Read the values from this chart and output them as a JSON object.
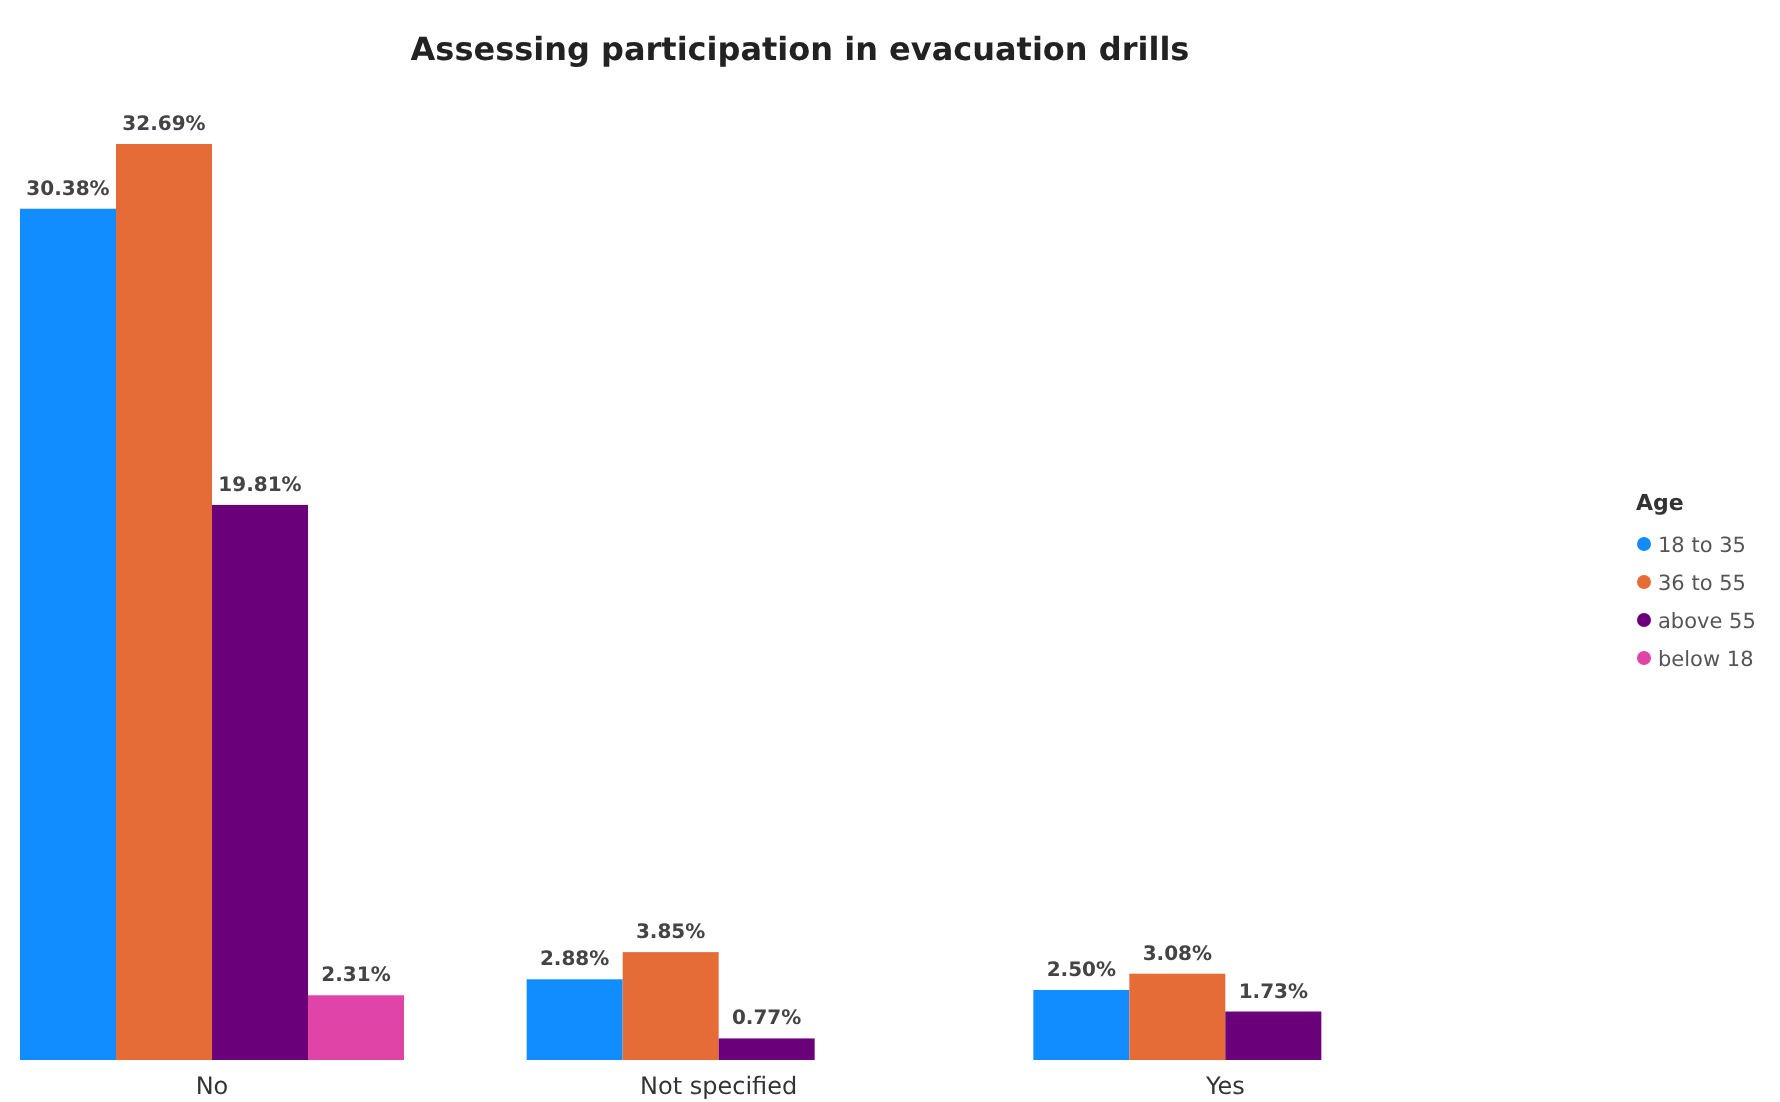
{
  "chart_data": {
    "type": "bar",
    "title": "Assessing participation in evacuation drills",
    "legend_title": "Age",
    "legend": "right",
    "categories": [
      "No",
      "Not specified",
      "Yes"
    ],
    "series": [
      {
        "name": "18 to 35",
        "color": "#118dff",
        "values": [
          30.38,
          2.88,
          2.5
        ],
        "value_labels": [
          "30.38%",
          "2.88%",
          "2.50%"
        ]
      },
      {
        "name": "36 to 55",
        "color": "#e66c37",
        "values": [
          32.69,
          3.85,
          3.08
        ],
        "value_labels": [
          "32.69%",
          "3.85%",
          "3.08%"
        ]
      },
      {
        "name": "above 55",
        "color": "#6b007b",
        "values": [
          19.81,
          0.77,
          1.73
        ],
        "value_labels": [
          "19.81%",
          "0.77%",
          "1.73%"
        ]
      },
      {
        "name": "below 18",
        "color": "#e044a7",
        "values": [
          2.31,
          null,
          null
        ],
        "value_labels": [
          "2.31%",
          null,
          null
        ]
      }
    ]
  }
}
